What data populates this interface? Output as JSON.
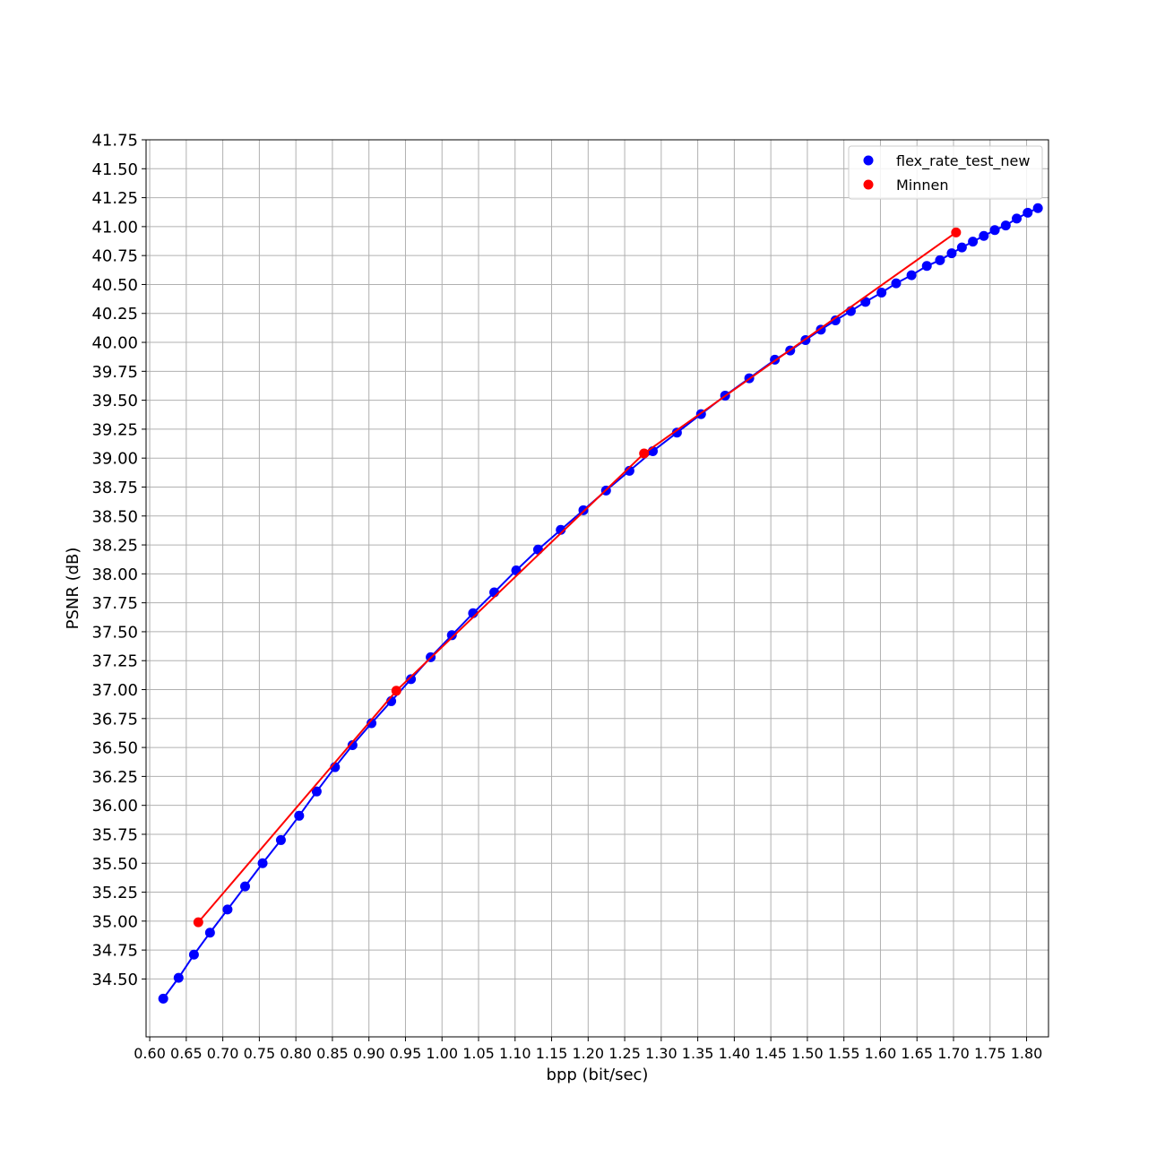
{
  "chart_data": {
    "type": "line",
    "title": "",
    "xlabel": "bpp (bit/sec)",
    "ylabel": "PSNR (dB)",
    "xlim": [
      0.595,
      1.83
    ],
    "ylim": [
      34.0,
      41.75
    ],
    "x_ticks": [
      "0.60",
      "0.65",
      "0.70",
      "0.75",
      "0.80",
      "0.85",
      "0.90",
      "0.95",
      "1.00",
      "1.05",
      "1.10",
      "1.15",
      "1.20",
      "1.25",
      "1.30",
      "1.35",
      "1.40",
      "1.45",
      "1.50",
      "1.55",
      "1.60",
      "1.65",
      "1.70",
      "1.75",
      "1.80"
    ],
    "y_ticks": [
      "34.50",
      "34.75",
      "35.00",
      "35.25",
      "35.50",
      "35.75",
      "36.00",
      "36.25",
      "36.50",
      "36.75",
      "37.00",
      "37.25",
      "37.50",
      "37.75",
      "38.00",
      "38.25",
      "38.50",
      "38.75",
      "39.00",
      "39.25",
      "39.50",
      "39.75",
      "40.00",
      "40.25",
      "40.50",
      "40.75",
      "41.00",
      "41.25",
      "41.50",
      "41.75"
    ],
    "grid": true,
    "legend_position": "top-right",
    "series": [
      {
        "name": "flex_rate_test_new",
        "color": "#0000ff",
        "marker": "circle",
        "points": [
          [
            0.6185,
            34.33
          ],
          [
            0.6395,
            34.51
          ],
          [
            0.6605,
            34.71
          ],
          [
            0.6825,
            34.9
          ],
          [
            0.7065,
            35.1
          ],
          [
            0.7305,
            35.3
          ],
          [
            0.7545,
            35.5
          ],
          [
            0.7795,
            35.7
          ],
          [
            0.8045,
            35.91
          ],
          [
            0.8285,
            36.12
          ],
          [
            0.8535,
            36.33
          ],
          [
            0.8775,
            36.52
          ],
          [
            0.9035,
            36.71
          ],
          [
            0.9305,
            36.9
          ],
          [
            0.9575,
            37.09
          ],
          [
            0.9845,
            37.28
          ],
          [
            1.0135,
            37.47
          ],
          [
            1.0425,
            37.66
          ],
          [
            1.0715,
            37.84
          ],
          [
            1.1015,
            38.03
          ],
          [
            1.1315,
            38.21
          ],
          [
            1.1625,
            38.38
          ],
          [
            1.1935,
            38.55
          ],
          [
            1.2245,
            38.72
          ],
          [
            1.2565,
            38.89
          ],
          [
            1.2885,
            39.06
          ],
          [
            1.3215,
            39.22
          ],
          [
            1.3545,
            39.38
          ],
          [
            1.3875,
            39.54
          ],
          [
            1.4205,
            39.69
          ],
          [
            1.4555,
            39.85
          ],
          [
            1.4765,
            39.93
          ],
          [
            1.4975,
            40.02
          ],
          [
            1.5185,
            40.11
          ],
          [
            1.5385,
            40.19
          ],
          [
            1.5595,
            40.27
          ],
          [
            1.5795,
            40.35
          ],
          [
            1.6015,
            40.43
          ],
          [
            1.6215,
            40.51
          ],
          [
            1.6425,
            40.58
          ],
          [
            1.6635,
            40.66
          ],
          [
            1.6815,
            40.71
          ],
          [
            1.6975,
            40.77
          ],
          [
            1.7115,
            40.82
          ],
          [
            1.7265,
            40.87
          ],
          [
            1.7415,
            40.92
          ],
          [
            1.7565,
            40.97
          ],
          [
            1.7715,
            41.01
          ],
          [
            1.7865,
            41.07
          ],
          [
            1.8015,
            41.12
          ],
          [
            1.8155,
            41.16
          ]
        ]
      },
      {
        "name": "Minnen",
        "color": "#ff0000",
        "marker": "circle",
        "points": [
          [
            0.6665,
            34.99
          ],
          [
            0.9375,
            36.99
          ],
          [
            1.2765,
            39.04
          ],
          [
            1.7035,
            40.95
          ]
        ]
      }
    ]
  }
}
